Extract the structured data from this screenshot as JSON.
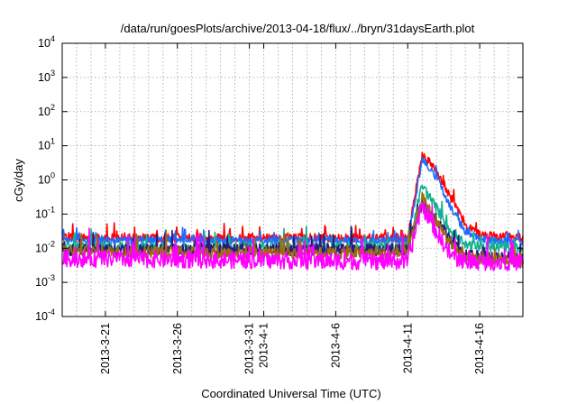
{
  "chart_data": {
    "type": "line",
    "title": "/data/run/goesPlots/archive/2013-04-18/flux/../bryn/31daysEarth.plot",
    "xlabel": "Coordinated Universal Time (UTC)",
    "ylabel": "cGy/day",
    "yscale": "log",
    "ylim": [
      0.0001,
      10000
    ],
    "xlim": [
      "2013-03-18",
      "2013-04-19"
    ],
    "grid": true,
    "y_ticks": [
      {
        "base": "10",
        "exp": "-4",
        "value": 0.0001
      },
      {
        "base": "10",
        "exp": "-3",
        "value": 0.001
      },
      {
        "base": "10",
        "exp": "-2",
        "value": 0.01
      },
      {
        "base": "10",
        "exp": "-1",
        "value": 0.1
      },
      {
        "base": "10",
        "exp": "0",
        "value": 1
      },
      {
        "base": "10",
        "exp": "1",
        "value": 10
      },
      {
        "base": "10",
        "exp": "2",
        "value": 100
      },
      {
        "base": "10",
        "exp": "3",
        "value": 1000
      },
      {
        "base": "10",
        "exp": "4",
        "value": 10000
      }
    ],
    "x_ticks": [
      {
        "label": "2013-3-21",
        "date": "2013-03-21"
      },
      {
        "label": "2013-3-26",
        "date": "2013-03-26"
      },
      {
        "label": "2013-3-31",
        "date": "2013-03-31"
      },
      {
        "label": "2013-4-1",
        "date": "2013-04-01"
      },
      {
        "label": "2013-4-6",
        "date": "2013-04-06"
      },
      {
        "label": "2013-4-11",
        "date": "2013-04-11"
      },
      {
        "label": "2013-4-16",
        "date": "2013-04-16"
      }
    ],
    "series": [
      {
        "color": "#ff0000",
        "values": [
          [
            "2013-03-18",
            0.02
          ],
          [
            "2013-04-11",
            0.02
          ],
          [
            "2013-04-12",
            5.5
          ],
          [
            "2013-04-13",
            2.0
          ],
          [
            "2013-04-14",
            0.3
          ],
          [
            "2013-04-15",
            0.05
          ],
          [
            "2013-04-16",
            0.025
          ],
          [
            "2013-04-19",
            0.02
          ]
        ]
      },
      {
        "color": "#1f6bff",
        "values": [
          [
            "2013-03-18",
            0.017
          ],
          [
            "2013-04-11",
            0.017
          ],
          [
            "2013-04-12",
            4.0
          ],
          [
            "2013-04-13",
            1.2
          ],
          [
            "2013-04-14",
            0.15
          ],
          [
            "2013-04-15",
            0.03
          ],
          [
            "2013-04-16",
            0.018
          ],
          [
            "2013-04-19",
            0.015
          ]
        ]
      },
      {
        "color": "#10b090",
        "values": [
          [
            "2013-03-18",
            0.011
          ],
          [
            "2013-04-11",
            0.011
          ],
          [
            "2013-04-12",
            0.7
          ],
          [
            "2013-04-13",
            0.15
          ],
          [
            "2013-04-14",
            0.03
          ],
          [
            "2013-04-15",
            0.012
          ],
          [
            "2013-04-19",
            0.01
          ]
        ]
      },
      {
        "color": "#2a1a7a",
        "values": [
          [
            "2013-03-18",
            0.009
          ],
          [
            "2013-04-11",
            0.009
          ],
          [
            "2013-04-12",
            0.22
          ],
          [
            "2013-04-13",
            0.07
          ],
          [
            "2013-04-14",
            0.015
          ],
          [
            "2013-04-15",
            0.006
          ],
          [
            "2013-04-19",
            0.005
          ]
        ]
      },
      {
        "color": "#a06a10",
        "values": [
          [
            "2013-03-18",
            0.008
          ],
          [
            "2013-04-11",
            0.007
          ],
          [
            "2013-04-12",
            0.3
          ],
          [
            "2013-04-13",
            0.06
          ],
          [
            "2013-04-14",
            0.012
          ],
          [
            "2013-04-15",
            0.005
          ],
          [
            "2013-04-19",
            0.004
          ]
        ]
      },
      {
        "color": "#ff00ff",
        "values": [
          [
            "2013-03-18",
            0.005
          ],
          [
            "2013-04-11",
            0.004
          ],
          [
            "2013-04-12",
            0.18
          ],
          [
            "2013-04-13",
            0.03
          ],
          [
            "2013-04-14",
            0.006
          ],
          [
            "2013-04-15",
            0.004
          ],
          [
            "2013-04-19",
            0.004
          ]
        ]
      }
    ]
  }
}
